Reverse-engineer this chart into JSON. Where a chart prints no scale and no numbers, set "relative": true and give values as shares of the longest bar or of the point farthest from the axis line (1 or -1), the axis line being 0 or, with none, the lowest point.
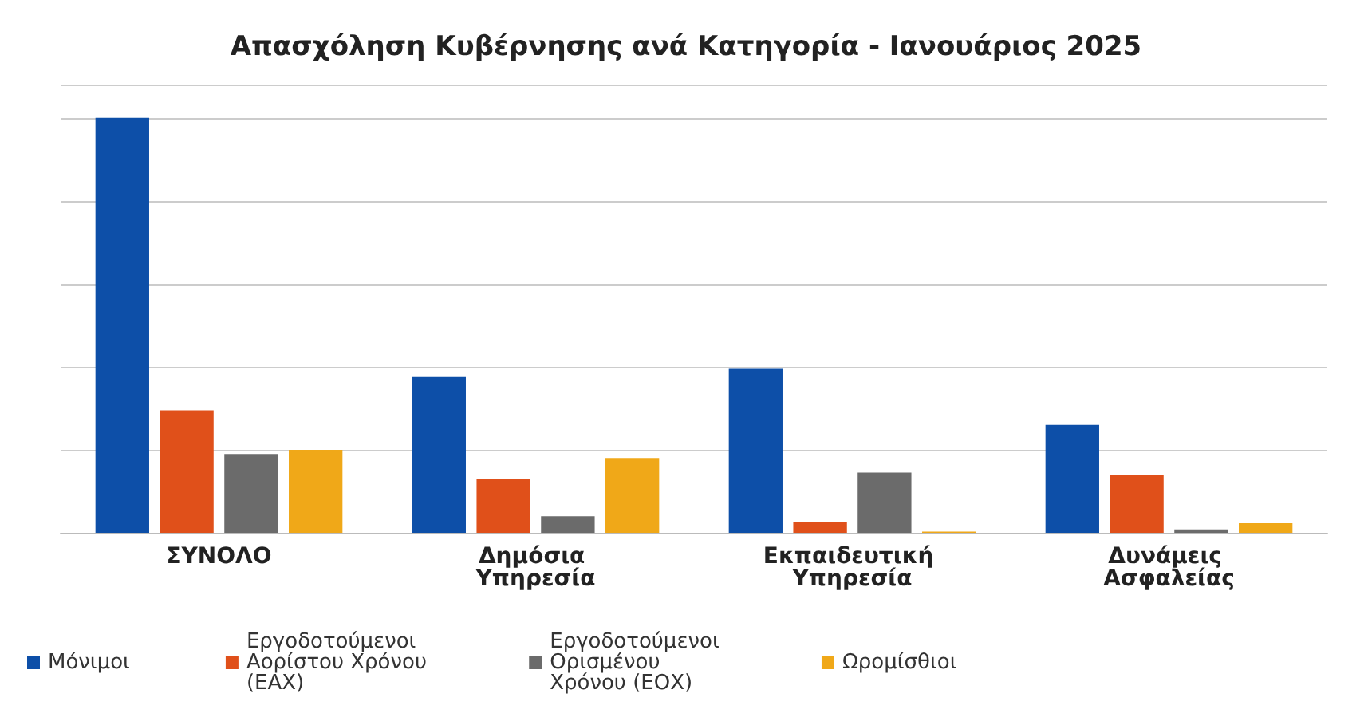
{
  "chart_data": {
    "type": "bar",
    "title": "Απασχόληση Κυβέρνησης ανά Κατηγορία - Ιανουάριος 2025",
    "relative": true,
    "grid": "y",
    "legend": "bottom",
    "categories": [
      "ΣΥΝΟΛΟ",
      "Δημόσια Υπηρεσία",
      "Εκπαιδευτική Υπηρεσία",
      "Δυνάμεις Ασφαλείας"
    ],
    "series": [
      {
        "name": "Μόνιμοι",
        "color": "#0d4fa8",
        "values": [
          1,
          0.375,
          0.395,
          0.26
        ]
      },
      {
        "name": "Εργοδοτούμενοι Αορίστου Χρόνου (ΕΑΧ)",
        "color": "#e0501a",
        "values": [
          0.295,
          0.13,
          0.027,
          0.14
        ]
      },
      {
        "name": "Εργοδοτούμενοι Ορισμένου Χρόνου (ΕΟΧ)",
        "color": "#6b6b6b",
        "values": [
          0.19,
          0.04,
          0.145,
          0.008
        ]
      },
      {
        "name": "Ωρομίσθιοι",
        "color": "#f0a818",
        "values": [
          0.2,
          0.18,
          0.003,
          0.023
        ]
      }
    ]
  }
}
